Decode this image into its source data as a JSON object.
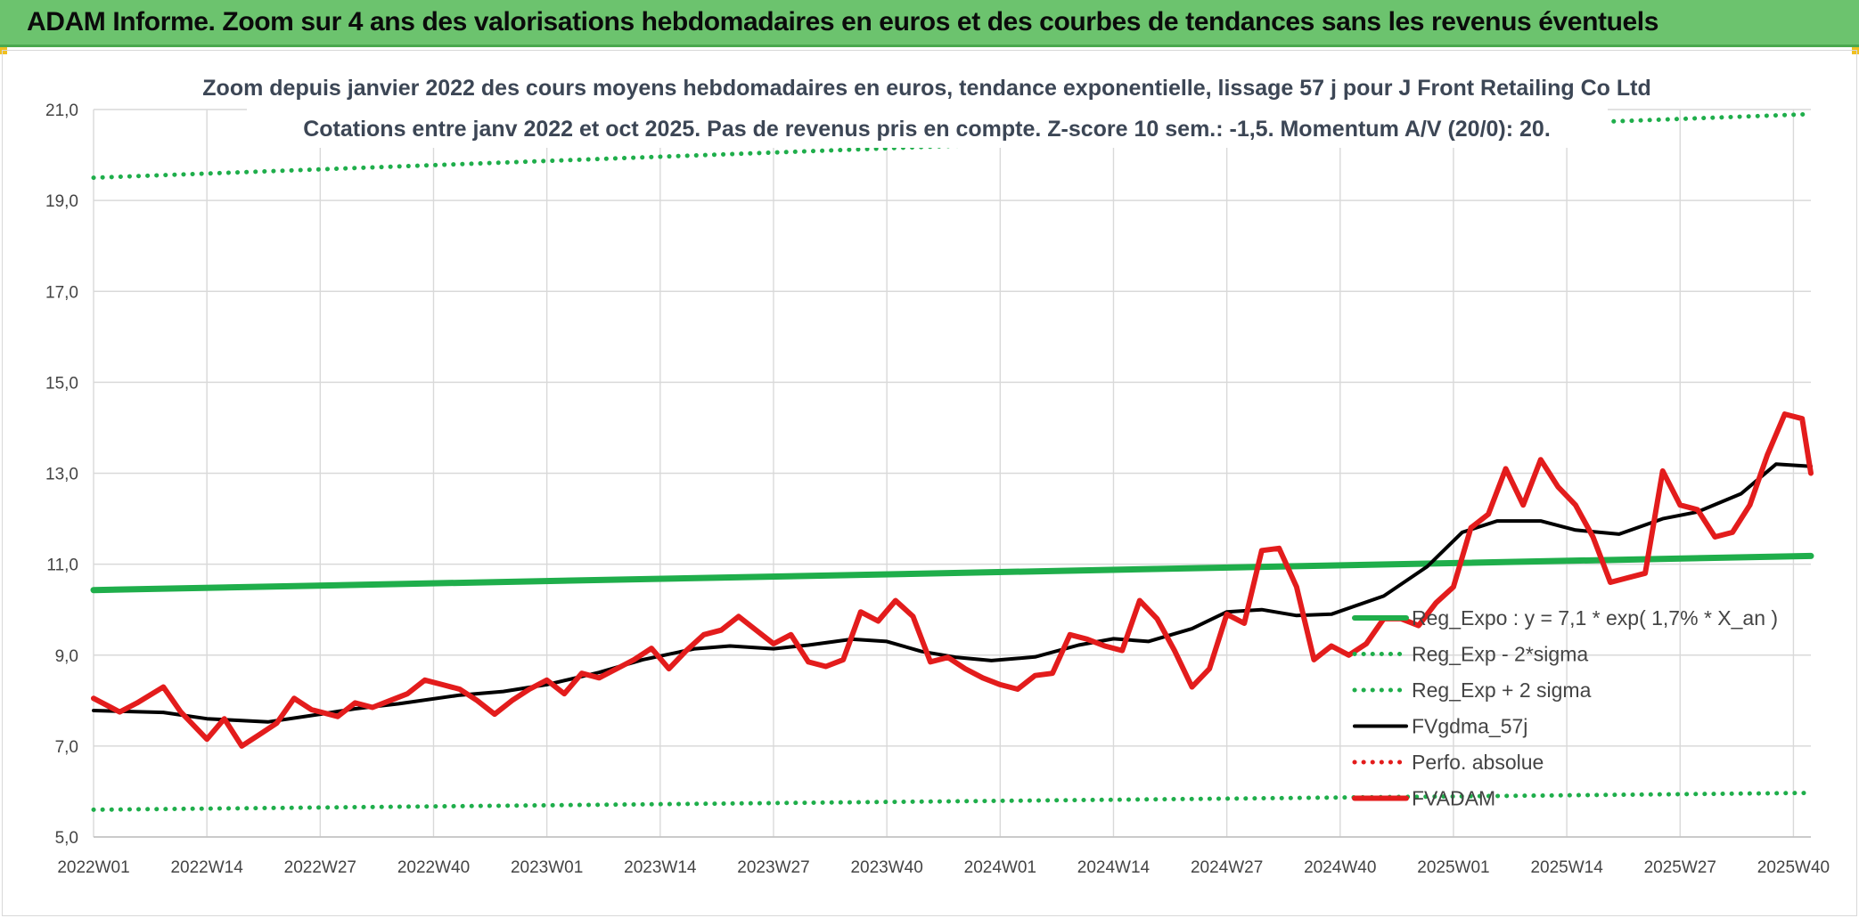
{
  "banner": {
    "title": "ADAM Informe. Zoom sur 4 ans des valorisations hebdomadaires en euros et des courbes de tendances sans les revenus éventuels"
  },
  "chart_data": {
    "type": "line",
    "title": "Zoom depuis janvier 2022 des cours moyens hebdomadaires en euros, tendance exponentielle, lissage 57 j pour J Front Retailing Co Ltd",
    "subtitle": "Cotations entre janv 2022 et oct 2025. Pas de revenus pris en compte. Z-score 10 sem.: -1,5. Momentum A/V (20/0): 20.",
    "xlabel": "",
    "ylabel": "",
    "ylim": [
      5,
      21
    ],
    "yticks": [
      "5,0",
      "7,0",
      "9,0",
      "11,0",
      "13,0",
      "15,0",
      "17,0",
      "19,0",
      "21,0"
    ],
    "xticks": [
      "2022W01",
      "2022W14",
      "2022W27",
      "2022W40",
      "2023W01",
      "2023W14",
      "2023W27",
      "2023W40",
      "2024W01",
      "2024W14",
      "2024W27",
      "2024W40",
      "2025W01",
      "2025W14",
      "2025W27",
      "2025W40"
    ],
    "grid": true,
    "legend_position": "right-middle",
    "n_weeks": 198,
    "series": [
      {
        "name": "Reg_Expo : y = 7,1 * exp( 1,7% *  X_an )",
        "style": "solid-thick",
        "color": "#1fae4b",
        "x": [
          0,
          197
        ],
        "values": [
          10.43,
          11.18
        ]
      },
      {
        "name": "Reg_Exp - 2*sigma",
        "style": "dotted",
        "color": "#1fae4b",
        "x": [
          0,
          197
        ],
        "values": [
          5.6,
          5.97
        ]
      },
      {
        "name": "Reg_Exp + 2 sigma",
        "style": "dotted",
        "color": "#1fae4b",
        "x": [
          0,
          197
        ],
        "values": [
          19.5,
          20.9
        ]
      },
      {
        "name": "FVgdma_57j",
        "style": "solid",
        "color": "#000000",
        "x": [
          0,
          8,
          13,
          17,
          20,
          26,
          30,
          35,
          42,
          47,
          52,
          58,
          63,
          69,
          73,
          78,
          82,
          87,
          91,
          95,
          99,
          103,
          108,
          113,
          117,
          121,
          126,
          130,
          134,
          138,
          142,
          148,
          153,
          157,
          161,
          166,
          170,
          175,
          180,
          184,
          189,
          193,
          197
        ],
        "values": [
          7.78,
          7.74,
          7.6,
          7.56,
          7.53,
          7.7,
          7.82,
          7.93,
          8.12,
          8.2,
          8.35,
          8.62,
          8.9,
          9.14,
          9.2,
          9.14,
          9.22,
          9.35,
          9.3,
          9.08,
          8.95,
          8.88,
          8.96,
          9.22,
          9.36,
          9.3,
          9.58,
          9.95,
          10.0,
          9.87,
          9.9,
          10.3,
          10.95,
          11.7,
          11.95,
          11.95,
          11.75,
          11.66,
          12.0,
          12.15,
          12.55,
          13.2,
          13.15
        ]
      },
      {
        "name": "Perfo. absolue",
        "style": "dotted",
        "color": "#e31c1c",
        "x": [],
        "values": []
      },
      {
        "name": "FVADAM",
        "style": "solid-thick",
        "color": "#e31c1c",
        "x": [
          0,
          3,
          5,
          8,
          10,
          13,
          15,
          17,
          19,
          21,
          23,
          25,
          28,
          30,
          32,
          34,
          36,
          38,
          40,
          42,
          44,
          46,
          48,
          50,
          52,
          54,
          56,
          58,
          60,
          62,
          64,
          66,
          68,
          70,
          72,
          74,
          76,
          78,
          80,
          82,
          84,
          86,
          88,
          90,
          92,
          94,
          96,
          98,
          100,
          102,
          104,
          106,
          108,
          110,
          112,
          114,
          116,
          118,
          120,
          122,
          124,
          126,
          128,
          130,
          132,
          134,
          136,
          138,
          140,
          142,
          144,
          146,
          148,
          150,
          152,
          154,
          156,
          158,
          160,
          162,
          164,
          166,
          168,
          170,
          172,
          174,
          176,
          178,
          180,
          182,
          184,
          186,
          188,
          190,
          192,
          194,
          196,
          197
        ],
        "values": [
          8.05,
          7.75,
          7.95,
          8.3,
          7.75,
          7.15,
          7.6,
          7.0,
          7.25,
          7.5,
          8.05,
          7.8,
          7.65,
          7.95,
          7.85,
          8.0,
          8.15,
          8.45,
          8.35,
          8.25,
          8.0,
          7.7,
          8.0,
          8.25,
          8.45,
          8.15,
          8.6,
          8.5,
          8.7,
          8.9,
          9.15,
          8.7,
          9.1,
          9.45,
          9.55,
          9.85,
          9.55,
          9.25,
          9.45,
          8.85,
          8.75,
          8.9,
          9.95,
          9.75,
          10.2,
          9.85,
          8.85,
          8.95,
          8.7,
          8.5,
          8.35,
          8.25,
          8.55,
          8.6,
          9.45,
          9.35,
          9.2,
          9.1,
          10.2,
          9.8,
          9.1,
          8.3,
          8.7,
          9.9,
          9.7,
          11.3,
          11.35,
          10.5,
          8.9,
          9.2,
          9.0,
          9.25,
          9.8,
          9.8,
          9.65,
          10.15,
          10.5,
          11.8,
          12.1,
          13.1,
          12.3,
          13.3,
          12.7,
          12.3,
          11.6,
          10.6,
          10.7,
          10.8,
          13.05,
          12.3,
          12.2,
          11.6,
          11.7,
          12.3,
          13.4,
          14.3,
          14.2,
          13.0
        ]
      }
    ]
  }
}
